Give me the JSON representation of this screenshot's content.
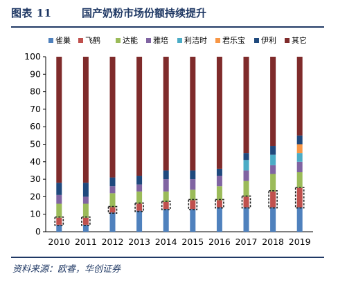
{
  "header": {
    "label": "图表 11",
    "title": "国产奶粉市场份额持续提升"
  },
  "footer": {
    "source": "资料来源：欧睿，华创证券"
  },
  "chart_data": {
    "type": "bar",
    "stacked": true,
    "categories": [
      "2010",
      "2011",
      "2012",
      "2013",
      "2014",
      "2015",
      "2016",
      "2017",
      "2018",
      "2019"
    ],
    "ylim": [
      0,
      100
    ],
    "yticks": [
      0,
      10,
      20,
      30,
      40,
      50,
      60,
      70,
      80,
      90,
      100
    ],
    "legend_position": "top",
    "grid": false,
    "series": [
      {
        "name": "雀巢",
        "color": "#4f81bd",
        "values": [
          4,
          4,
          11,
          12,
          13,
          13,
          14,
          14,
          14,
          14
        ]
      },
      {
        "name": "飞鹤",
        "color": "#c0504d",
        "values": [
          4,
          4,
          3,
          4,
          4,
          5,
          4,
          6,
          9,
          11
        ]
      },
      {
        "name": "达能",
        "color": "#9bbb59",
        "values": [
          8,
          8,
          8,
          7,
          6,
          6,
          8,
          9,
          10,
          9
        ]
      },
      {
        "name": "雅培",
        "color": "#8064a2",
        "values": [
          5,
          4,
          4,
          4,
          7,
          6,
          6,
          6,
          5,
          6
        ]
      },
      {
        "name": "利洁时",
        "color": "#4bacc6",
        "values": [
          0,
          0,
          0,
          0,
          0,
          0,
          0,
          6,
          6,
          5
        ]
      },
      {
        "name": "君乐宝",
        "color": "#f79646",
        "values": [
          0,
          0,
          0,
          0,
          0,
          0,
          0,
          0,
          0,
          5
        ]
      },
      {
        "name": "伊利",
        "color": "#1f497d",
        "values": [
          7,
          8,
          5,
          5,
          5,
          5,
          4,
          4,
          5,
          5
        ]
      },
      {
        "name": "其它",
        "color": "#7f2b2b",
        "values": [
          72,
          72,
          69,
          68,
          65,
          65,
          64,
          55,
          51,
          45
        ]
      }
    ]
  }
}
